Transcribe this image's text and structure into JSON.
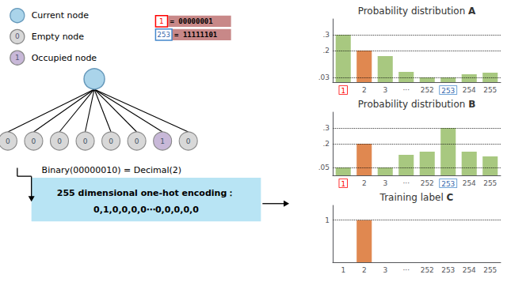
{
  "chart_data": [
    {
      "type": "diagram",
      "annotations": [
        "Current node",
        "Empty node",
        "Occupied node",
        "0",
        "1",
        "1",
        "= 00000001",
        "253",
        "= 11111101",
        "Binary(00000010) = Decimal(2)",
        "255 dimensional one-hot encoding：",
        "0,1,0,0,0,0⋯0,0,0,0,0"
      ],
      "values": [
        0,
        0,
        0,
        0,
        0,
        0,
        1,
        0
      ],
      "colors": [
        "#aad4ea",
        "#d8d8d8",
        "#c8b8d8"
      ]
    },
    {
      "type": "bar",
      "title": "Probability distribution A",
      "categories": [
        "1",
        "2",
        "3",
        "···",
        "252",
        "253",
        "254",
        "255"
      ],
      "values": [
        0.3,
        0.2,
        0.165,
        0.065,
        0.03,
        0.03,
        0.05,
        0.06
      ],
      "colors": [
        "#a8c880",
        "#e08850",
        "#a8c880",
        "#a8c880",
        "#a8c880",
        "#a8c880",
        "#a8c880",
        "#a8c880"
      ],
      "ylim": [
        0,
        0.4
      ],
      "yticks": [
        {
          "value": 0.03,
          "label": ".03"
        },
        {
          "value": 0.2,
          "label": ".2"
        },
        {
          "value": 0.3,
          "label": ".3"
        }
      ],
      "grid": true
    },
    {
      "type": "bar",
      "title": "Probability distribution B",
      "categories": [
        "1",
        "2",
        "3",
        "···",
        "252",
        "253",
        "254",
        "255"
      ],
      "values": [
        0.05,
        0.2,
        0.05,
        0.13,
        0.15,
        0.3,
        0.15,
        0.12
      ],
      "colors": [
        "#a8c880",
        "#e08850",
        "#a8c880",
        "#a8c880",
        "#a8c880",
        "#a8c880",
        "#a8c880",
        "#a8c880"
      ],
      "ylim": [
        0,
        0.4
      ],
      "yticks": [
        {
          "value": 0.05,
          "label": ".05"
        },
        {
          "value": 0.2,
          "label": ".2"
        },
        {
          "value": 0.3,
          "label": ".3"
        }
      ],
      "grid": true
    },
    {
      "type": "bar",
      "title": "Training label C",
      "categories": [
        "1",
        "2",
        "3",
        "···",
        "252",
        "253",
        "254",
        "255"
      ],
      "values": [
        0,
        1,
        0,
        0,
        0,
        0,
        0,
        0
      ],
      "color": "#e08850",
      "ylim": [
        0,
        1.35
      ],
      "yticks": [
        1
      ],
      "grid": true
    }
  ]
}
